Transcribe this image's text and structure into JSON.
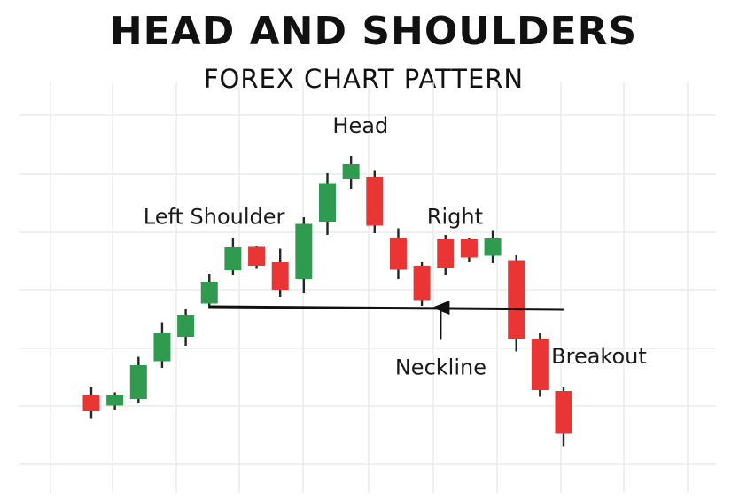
{
  "header": {
    "title": "HEAD AND SHOULDERS",
    "subtitle": "FOREX CHART PATTERN"
  },
  "colors": {
    "bullish": "#2e9b4e",
    "bearish": "#ea3535",
    "line": "#111111",
    "grid": "#ebebeb"
  },
  "chart_data": {
    "type": "candlestick",
    "grid": true,
    "candles": [
      {
        "open": 15.8,
        "close": 12.2,
        "high": 17.8,
        "low": 10.5
      },
      {
        "open": 13.5,
        "close": 15.8,
        "high": 16.5,
        "low": 12.5
      },
      {
        "open": 15.0,
        "close": 22.6,
        "high": 24.5,
        "low": 14.0
      },
      {
        "open": 23.5,
        "close": 29.8,
        "high": 32.3,
        "low": 22.0
      },
      {
        "open": 29.0,
        "close": 34.0,
        "high": 35.3,
        "low": 27.0
      },
      {
        "open": 36.5,
        "close": 41.4,
        "high": 43.2,
        "low": 35.5
      },
      {
        "open": 44.0,
        "close": 49.2,
        "high": 51.3,
        "low": 43.0
      },
      {
        "open": 49.3,
        "close": 45.0,
        "high": 49.5,
        "low": 44.5
      },
      {
        "open": 46.0,
        "close": 39.6,
        "high": 48.9,
        "low": 38.0
      },
      {
        "open": 42.0,
        "close": 54.5,
        "high": 56.0,
        "low": 38.8
      },
      {
        "open": 55.0,
        "close": 63.7,
        "high": 66.0,
        "low": 52.0
      },
      {
        "open": 64.6,
        "close": 68.0,
        "high": 69.8,
        "low": 62.4
      },
      {
        "open": 65.0,
        "close": 54.1,
        "high": 66.5,
        "low": 52.4
      },
      {
        "open": 51.3,
        "close": 44.3,
        "high": 53.5,
        "low": 42.0
      },
      {
        "open": 45.0,
        "close": 37.3,
        "high": 46.0,
        "low": 36.0
      },
      {
        "open": 51.0,
        "close": 44.6,
        "high": 52.0,
        "low": 43.0
      },
      {
        "open": 51.0,
        "close": 46.9,
        "high": 51.3,
        "low": 45.8
      },
      {
        "open": 47.3,
        "close": 51.2,
        "high": 52.9,
        "low": 45.6
      },
      {
        "open": 46.3,
        "close": 28.6,
        "high": 47.4,
        "low": 25.7
      },
      {
        "open": 28.6,
        "close": 17.0,
        "high": 29.8,
        "low": 15.5
      },
      {
        "open": 16.8,
        "close": 7.3,
        "high": 17.8,
        "low": 4.3
      }
    ],
    "neckline": {
      "from": {
        "x": 5,
        "y": 35.8
      },
      "to": {
        "x": 20,
        "y": 35.2
      }
    },
    "annotations": [
      {
        "text": "Left Shoulder",
        "x": 5.2,
        "y": 54.5
      },
      {
        "text": "Head",
        "x": 11.4,
        "y": 75.0
      },
      {
        "text": "Right",
        "x": 15.4,
        "y": 54.5
      },
      {
        "text": "Neckline",
        "x": 14.8,
        "y": 20.5
      },
      {
        "text": "Breakout",
        "x": 21.5,
        "y": 23.0
      }
    ],
    "arrow": {
      "x": 14.8,
      "from_y": 28.5,
      "to_y": 35.6
    }
  }
}
